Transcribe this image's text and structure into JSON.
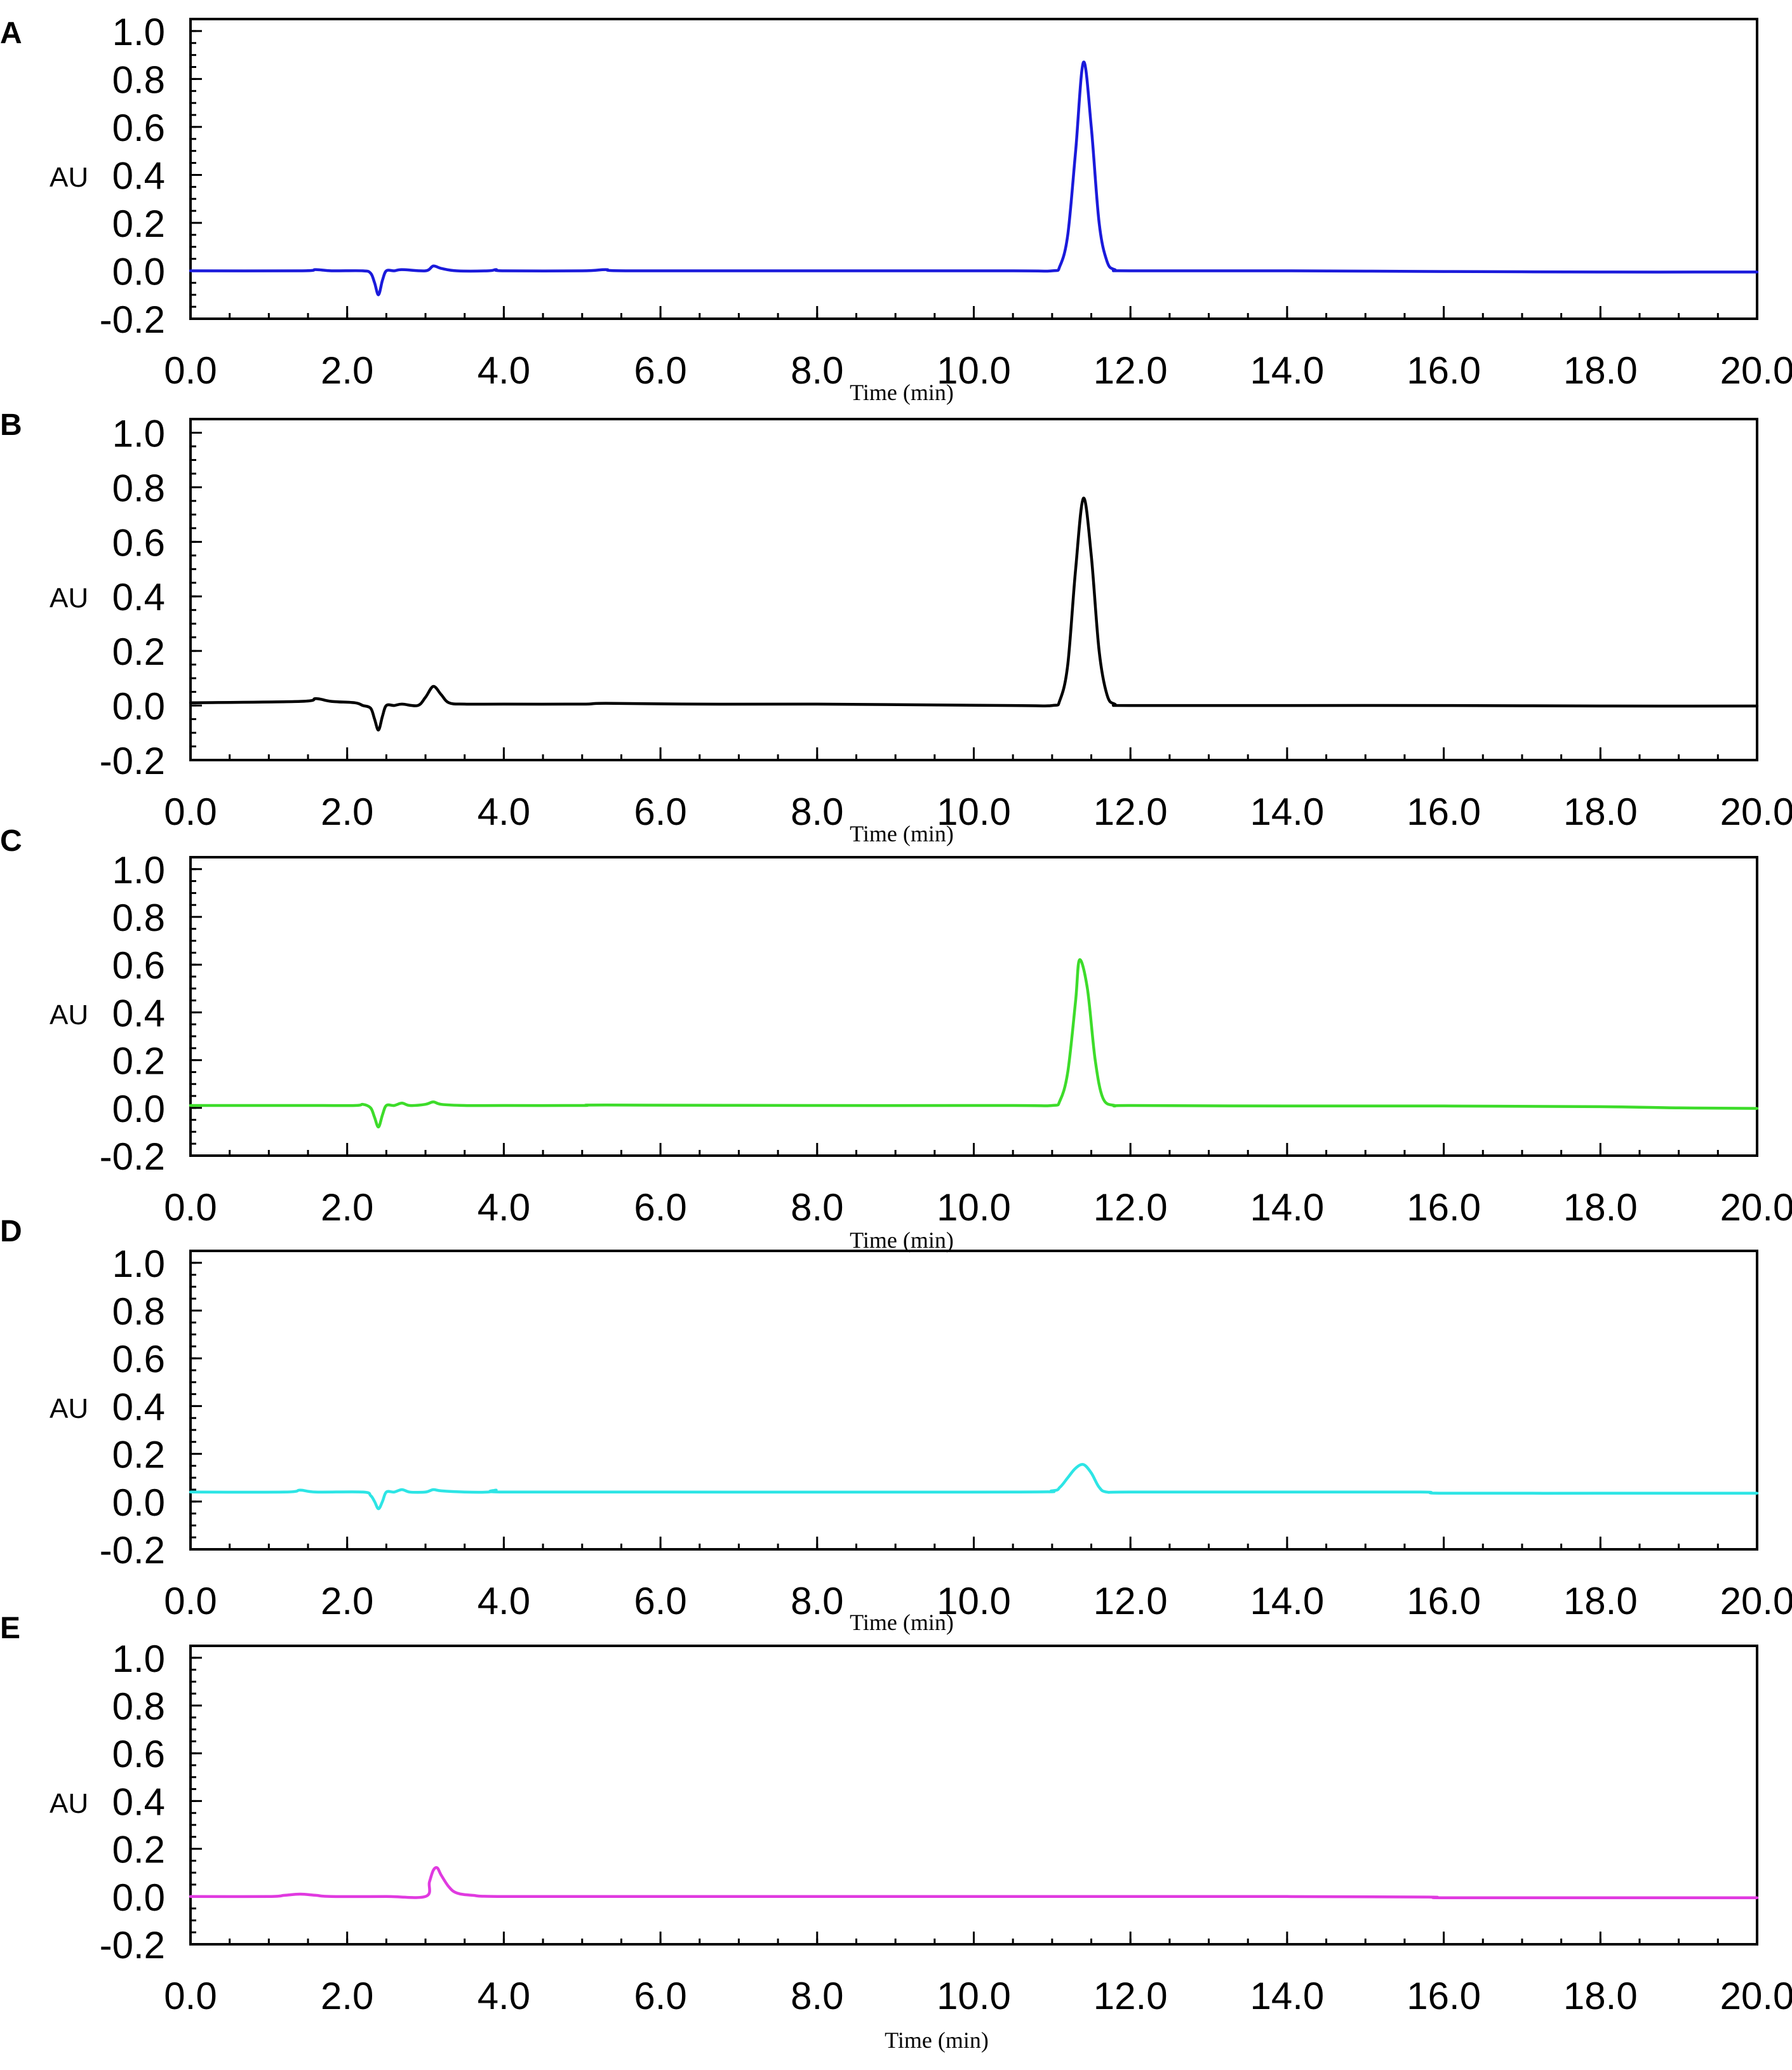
{
  "chart_data": [
    {
      "type": "line",
      "panel": "A",
      "ylabel": "AU",
      "xlabel": "Time (min)",
      "xlim": [
        0,
        20
      ],
      "ylim": [
        -0.2,
        1.05
      ],
      "xticks": [
        "0.0",
        "2.0",
        "4.0",
        "6.0",
        "8.0",
        "10.0",
        "12.0",
        "14.0",
        "16.0",
        "18.0",
        "20.0"
      ],
      "yticks": [
        "1.0",
        "0.8",
        "0.6",
        "0.4",
        "0.2",
        "0.0",
        "-0.2"
      ],
      "color": "#1a1adb",
      "series": [
        {
          "x": [
            0,
            1.4,
            1.6,
            1.8,
            2.2,
            2.3,
            2.35,
            2.4,
            2.45,
            2.5,
            2.6,
            2.7,
            3.0,
            3.1,
            3.2,
            3.4,
            3.8,
            3.9,
            4.0,
            5.0,
            5.3,
            5.6,
            8.0,
            10.5,
            11.0,
            11.1,
            11.2,
            11.3,
            11.4,
            11.5,
            11.6,
            11.7,
            11.8,
            12.0,
            14.0,
            16.0,
            18.0,
            20.0
          ],
          "y": [
            0.0,
            0.0,
            0.005,
            0.0,
            0.0,
            -0.01,
            -0.05,
            -0.1,
            -0.04,
            0.0,
            0.0,
            0.005,
            0.0,
            0.02,
            0.01,
            0.0,
            0.0,
            0.005,
            0.0,
            0.0,
            0.005,
            0.0,
            0.0,
            0.0,
            0.0,
            0.02,
            0.15,
            0.5,
            0.87,
            0.6,
            0.2,
            0.04,
            0.005,
            0.0,
            0.0,
            -0.003,
            -0.005,
            -0.005
          ]
        }
      ]
    },
    {
      "type": "line",
      "panel": "B",
      "ylabel": "AU",
      "xlabel": "Time (min)",
      "xlim": [
        0,
        20
      ],
      "ylim": [
        -0.2,
        1.05
      ],
      "xticks": [
        "0.0",
        "2.0",
        "4.0",
        "6.0",
        "8.0",
        "10.0",
        "12.0",
        "14.0",
        "16.0",
        "18.0",
        "20.0"
      ],
      "yticks": [
        "1.0",
        "0.8",
        "0.6",
        "0.4",
        "0.2",
        "0.0",
        "-0.2"
      ],
      "color": "#000000",
      "series": [
        {
          "x": [
            0,
            1.4,
            1.6,
            1.8,
            2.1,
            2.2,
            2.3,
            2.35,
            2.4,
            2.45,
            2.5,
            2.6,
            2.7,
            2.9,
            3.0,
            3.1,
            3.2,
            3.3,
            3.5,
            4.0,
            5.0,
            5.3,
            6.5,
            8.0,
            10.5,
            11.0,
            11.1,
            11.2,
            11.3,
            11.4,
            11.5,
            11.6,
            11.7,
            11.8,
            12.0,
            14.0,
            16.0,
            18.0,
            20.0
          ],
          "y": [
            0.01,
            0.015,
            0.025,
            0.015,
            0.01,
            0.0,
            -0.01,
            -0.05,
            -0.09,
            -0.04,
            0.0,
            0.0,
            0.005,
            0.0,
            0.03,
            0.07,
            0.04,
            0.01,
            0.005,
            0.005,
            0.005,
            0.008,
            0.005,
            0.005,
            0.0,
            0.0,
            0.02,
            0.15,
            0.5,
            0.76,
            0.55,
            0.2,
            0.04,
            0.005,
            0.0,
            0.0,
            0.0,
            -0.002,
            -0.002
          ]
        }
      ]
    },
    {
      "type": "line",
      "panel": "C",
      "ylabel": "AU",
      "xlabel": "Time (min)",
      "xlim": [
        0,
        20
      ],
      "ylim": [
        -0.2,
        1.05
      ],
      "xticks": [
        "0.0",
        "2.0",
        "4.0",
        "6.0",
        "8.0",
        "10.0",
        "12.0",
        "14.0",
        "16.0",
        "18.0",
        "20.0"
      ],
      "yticks": [
        "1.0",
        "0.8",
        "0.6",
        "0.4",
        "0.2",
        "0.0",
        "-0.2"
      ],
      "color": "#3ddc2a",
      "series": [
        {
          "x": [
            0,
            1.5,
            2.1,
            2.2,
            2.3,
            2.35,
            2.4,
            2.45,
            2.5,
            2.6,
            2.7,
            2.8,
            3.0,
            3.1,
            3.2,
            3.5,
            4.0,
            5.0,
            5.3,
            8.0,
            10.5,
            11.0,
            11.1,
            11.2,
            11.3,
            11.35,
            11.45,
            11.55,
            11.65,
            11.8,
            12.0,
            14.0,
            16.0,
            18.0,
            19.0,
            20.0
          ],
          "y": [
            0.01,
            0.01,
            0.01,
            0.015,
            0.0,
            -0.04,
            -0.08,
            -0.03,
            0.01,
            0.01,
            0.02,
            0.01,
            0.015,
            0.025,
            0.015,
            0.01,
            0.01,
            0.01,
            0.012,
            0.01,
            0.01,
            0.01,
            0.03,
            0.15,
            0.45,
            0.62,
            0.5,
            0.2,
            0.04,
            0.01,
            0.01,
            0.008,
            0.008,
            0.005,
            0.0,
            -0.002
          ]
        }
      ]
    },
    {
      "type": "line",
      "panel": "D",
      "ylabel": "AU",
      "xlabel": "Time (min)",
      "xlim": [
        0,
        20
      ],
      "ylim": [
        -0.2,
        1.05
      ],
      "xticks": [
        "0.0",
        "2.0",
        "4.0",
        "6.0",
        "8.0",
        "10.0",
        "12.0",
        "14.0",
        "16.0",
        "18.0",
        "20.0"
      ],
      "yticks": [
        "1.0",
        "0.8",
        "0.6",
        "0.4",
        "0.2",
        "0.0",
        "-0.2"
      ],
      "color": "#2de5e5",
      "series": [
        {
          "x": [
            0,
            1.2,
            1.4,
            1.6,
            2.2,
            2.3,
            2.35,
            2.4,
            2.45,
            2.5,
            2.6,
            2.7,
            2.8,
            3.0,
            3.1,
            3.2,
            3.5,
            3.8,
            3.9,
            4.0,
            6.0,
            10.5,
            11.0,
            11.1,
            11.2,
            11.3,
            11.4,
            11.5,
            11.6,
            11.7,
            12.0,
            14.0,
            15.7,
            16.0,
            18.0,
            20.0
          ],
          "y": [
            0.04,
            0.04,
            0.048,
            0.04,
            0.04,
            0.025,
            0.0,
            -0.03,
            0.0,
            0.04,
            0.04,
            0.05,
            0.04,
            0.04,
            0.05,
            0.045,
            0.04,
            0.04,
            0.048,
            0.04,
            0.04,
            0.04,
            0.045,
            0.06,
            0.1,
            0.14,
            0.155,
            0.12,
            0.06,
            0.04,
            0.04,
            0.04,
            0.04,
            0.035,
            0.035,
            0.035
          ]
        }
      ]
    },
    {
      "type": "line",
      "panel": "E",
      "ylabel": "AU",
      "xlabel": "Time (min)",
      "xlim": [
        0,
        20
      ],
      "ylim": [
        -0.2,
        1.05
      ],
      "xticks": [
        "0.0",
        "2.0",
        "4.0",
        "6.0",
        "8.0",
        "10.0",
        "12.0",
        "14.0",
        "16.0",
        "18.0",
        "20.0"
      ],
      "yticks": [
        "1.0",
        "0.8",
        "0.6",
        "0.4",
        "0.2",
        "0.0",
        "-0.2"
      ],
      "color": "#e03ae0",
      "series": [
        {
          "x": [
            0,
            1.0,
            1.2,
            1.4,
            1.6,
            1.8,
            2.5,
            3.0,
            3.05,
            3.1,
            3.15,
            3.2,
            3.3,
            3.4,
            3.6,
            4.0,
            6.0,
            10.0,
            14.0,
            15.8,
            16.0,
            18.0,
            20.0
          ],
          "y": [
            0.0,
            0.0,
            0.005,
            0.01,
            0.005,
            0.0,
            0.0,
            0.0,
            0.06,
            0.11,
            0.12,
            0.09,
            0.04,
            0.015,
            0.005,
            0.0,
            0.0,
            0.0,
            0.0,
            -0.002,
            -0.005,
            -0.005,
            -0.005
          ]
        }
      ]
    }
  ]
}
